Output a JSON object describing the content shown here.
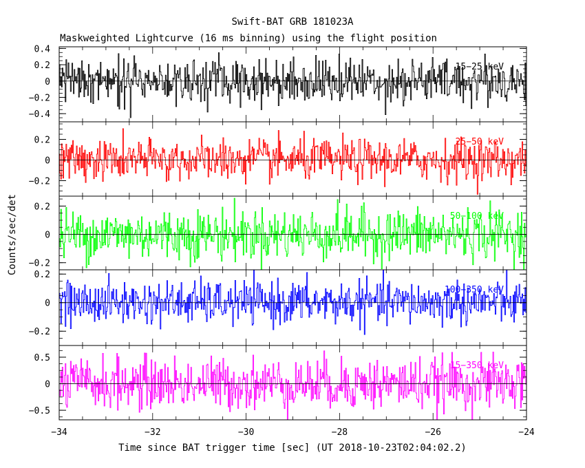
{
  "chart_data": {
    "type": "line",
    "title": "Swift-BAT GRB 181023A",
    "subtitle": "Maskweighted Lightcurve (16 ms binning) using the flight position",
    "xlabel": "Time since BAT trigger time [sec] (UT 2018-10-23T02:04:02.2)",
    "ylabel": "Counts/sec/det",
    "xlim": [
      -34,
      -24
    ],
    "x_ticks": [
      -34,
      -32,
      -30,
      -28,
      -26,
      -24
    ],
    "x_tick_labels": [
      "−34",
      "−32",
      "−30",
      "−28",
      "−26",
      "−24"
    ],
    "bin_seconds": 0.016,
    "series": [
      {
        "name": "15−25 keV",
        "color": "#000000",
        "ylim": [
          -0.5,
          0.42
        ],
        "y_ticks": [
          -0.4,
          -0.2,
          0,
          0.2,
          0.4
        ],
        "y_tick_labels": [
          "−0.4",
          "−0.2",
          "0",
          "0.2",
          "0.4"
        ],
        "noise_sigma": 0.14
      },
      {
        "name": "25−50 keV",
        "color": "#ff0000",
        "ylim": [
          -0.35,
          0.37
        ],
        "y_ticks": [
          -0.2,
          0,
          0.2
        ],
        "y_tick_labels": [
          "−0.2",
          "0",
          "0.2"
        ],
        "noise_sigma": 0.1
      },
      {
        "name": "50−100 keV",
        "color": "#00ff00",
        "ylim": [
          -0.25,
          0.27
        ],
        "y_ticks": [
          -0.2,
          0,
          0.2
        ],
        "y_tick_labels": [
          "−0.2",
          "0",
          "0.2"
        ],
        "noise_sigma": 0.09
      },
      {
        "name": "100−350 keV",
        "color": "#0000ff",
        "ylim": [
          -0.3,
          0.23
        ],
        "y_ticks": [
          -0.2,
          0,
          0.2
        ],
        "y_tick_labels": [
          "−0.2",
          "0",
          "0.2"
        ],
        "noise_sigma": 0.075
      },
      {
        "name": "15−350 keV",
        "color": "#ff00ff",
        "ylim": [
          -0.68,
          0.72
        ],
        "y_ticks": [
          -0.5,
          0,
          0.5
        ],
        "y_tick_labels": [
          "−0.5",
          "0",
          "0.5"
        ],
        "noise_sigma": 0.24
      }
    ]
  }
}
